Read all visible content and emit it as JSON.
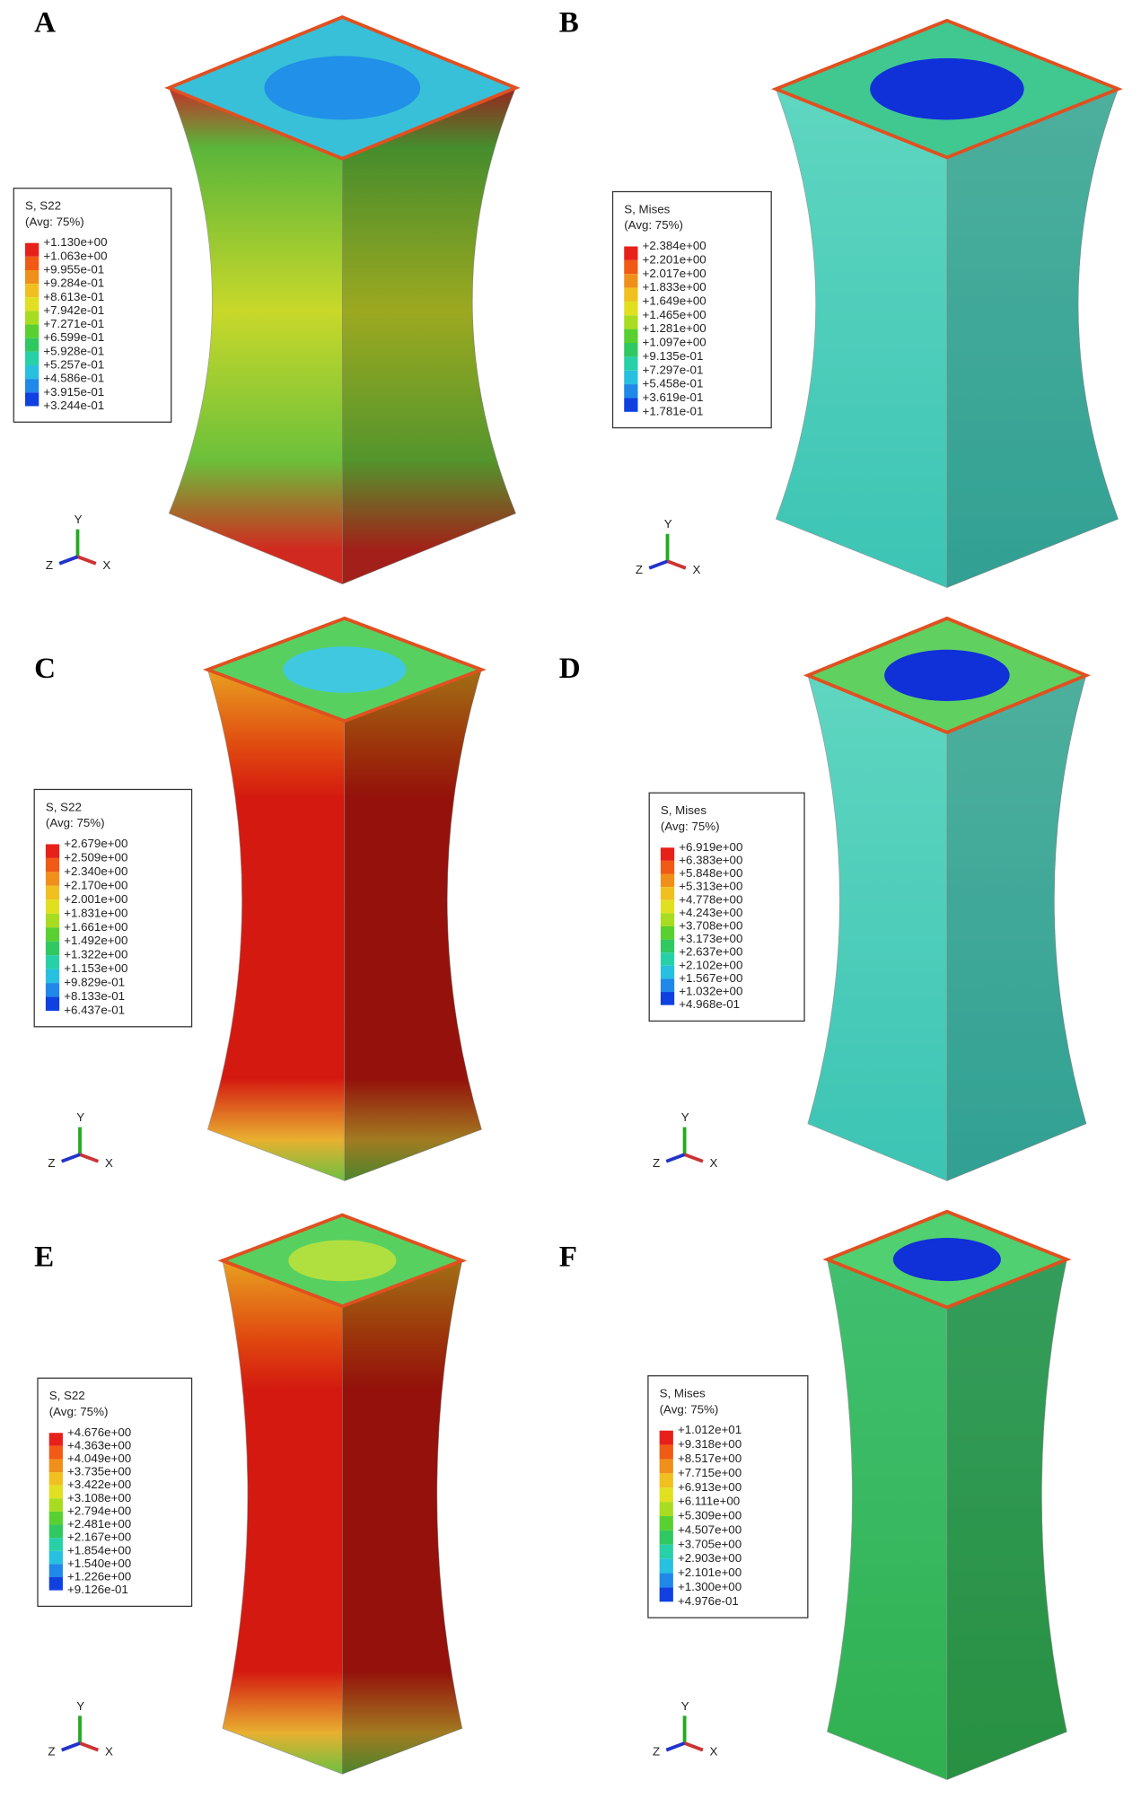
{
  "axes": {
    "y": "Y",
    "z": "Z",
    "x": "X"
  },
  "panels": [
    {
      "label": "A",
      "legend_title": "S, S22",
      "legend_avg": "(Avg: 75%)",
      "values": [
        "+1.130e+00",
        "+1.063e+00",
        "+9.955e-01",
        "+9.284e-01",
        "+8.613e-01",
        "+7.942e-01",
        "+7.271e-01",
        "+6.599e-01",
        "+5.928e-01",
        "+5.257e-01",
        "+4.586e-01",
        "+3.915e-01",
        "+3.244e-01"
      ]
    },
    {
      "label": "B",
      "legend_title": "S, Mises",
      "legend_avg": "(Avg: 75%)",
      "values": [
        "+2.384e+00",
        "+2.201e+00",
        "+2.017e+00",
        "+1.833e+00",
        "+1.649e+00",
        "+1.465e+00",
        "+1.281e+00",
        "+1.097e+00",
        "+9.135e-01",
        "+7.297e-01",
        "+5.458e-01",
        "+3.619e-01",
        "+1.781e-01"
      ]
    },
    {
      "label": "C",
      "legend_title": "S, S22",
      "legend_avg": "(Avg: 75%)",
      "values": [
        "+2.679e+00",
        "+2.509e+00",
        "+2.340e+00",
        "+2.170e+00",
        "+2.001e+00",
        "+1.831e+00",
        "+1.661e+00",
        "+1.492e+00",
        "+1.322e+00",
        "+1.153e+00",
        "+9.829e-01",
        "+8.133e-01",
        "+6.437e-01"
      ]
    },
    {
      "label": "D",
      "legend_title": "S, Mises",
      "legend_avg": "(Avg: 75%)",
      "values": [
        "+6.919e+00",
        "+6.383e+00",
        "+5.848e+00",
        "+5.313e+00",
        "+4.778e+00",
        "+4.243e+00",
        "+3.708e+00",
        "+3.173e+00",
        "+2.637e+00",
        "+2.102e+00",
        "+1.567e+00",
        "+1.032e+00",
        "+4.968e-01"
      ]
    },
    {
      "label": "E",
      "legend_title": "S, S22",
      "legend_avg": "(Avg: 75%)",
      "values": [
        "+4.676e+00",
        "+4.363e+00",
        "+4.049e+00",
        "+3.735e+00",
        "+3.422e+00",
        "+3.108e+00",
        "+2.794e+00",
        "+2.481e+00",
        "+2.167e+00",
        "+1.854e+00",
        "+1.540e+00",
        "+1.226e+00",
        "+9.126e-01"
      ]
    },
    {
      "label": "F",
      "legend_title": "S, Mises",
      "legend_avg": "(Avg: 75%)",
      "values": [
        "+1.012e+01",
        "+9.318e+00",
        "+8.517e+00",
        "+7.715e+00",
        "+6.913e+00",
        "+6.111e+00",
        "+5.309e+00",
        "+4.507e+00",
        "+3.705e+00",
        "+2.903e+00",
        "+2.101e+00",
        "+1.300e+00",
        "+4.976e-01"
      ]
    }
  ]
}
